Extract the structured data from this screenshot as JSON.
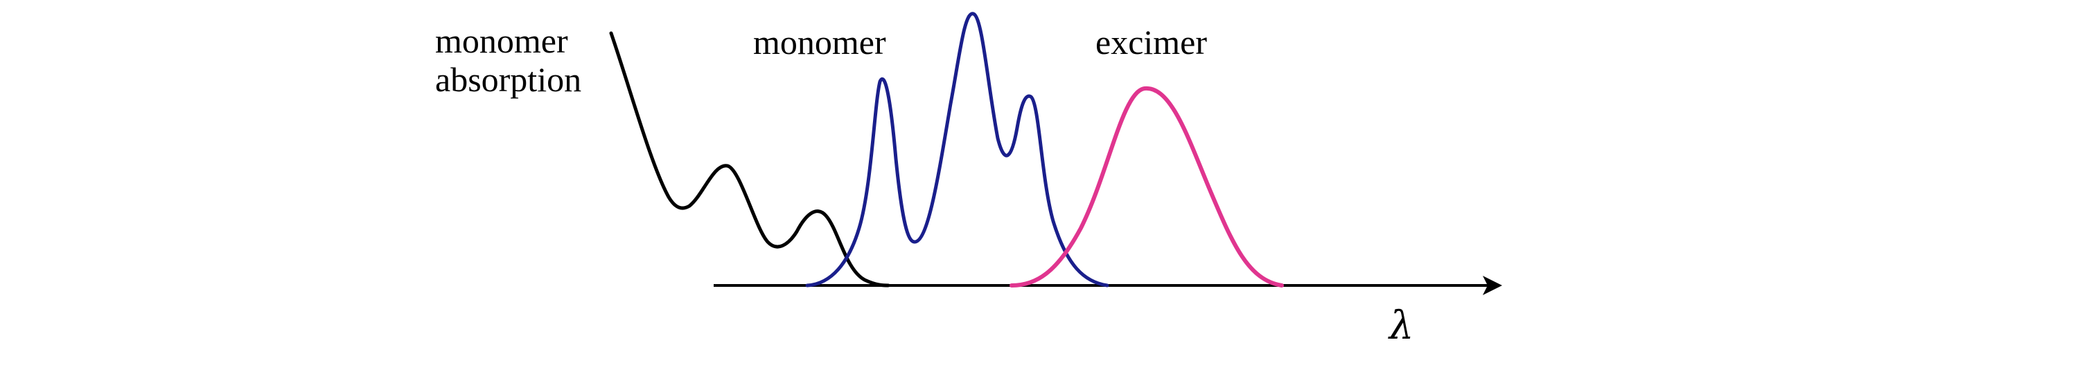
{
  "diagram": {
    "labels": {
      "absorption_line1": "monomer",
      "absorption_line2": "absorption",
      "monomer": "monomer",
      "excimer": "excimer",
      "axis_symbol": "λ"
    },
    "colors": {
      "absorption": "#000000",
      "monomer": "#1a1f8c",
      "excimer": "#e0358f",
      "axis": "#000000"
    }
  }
}
